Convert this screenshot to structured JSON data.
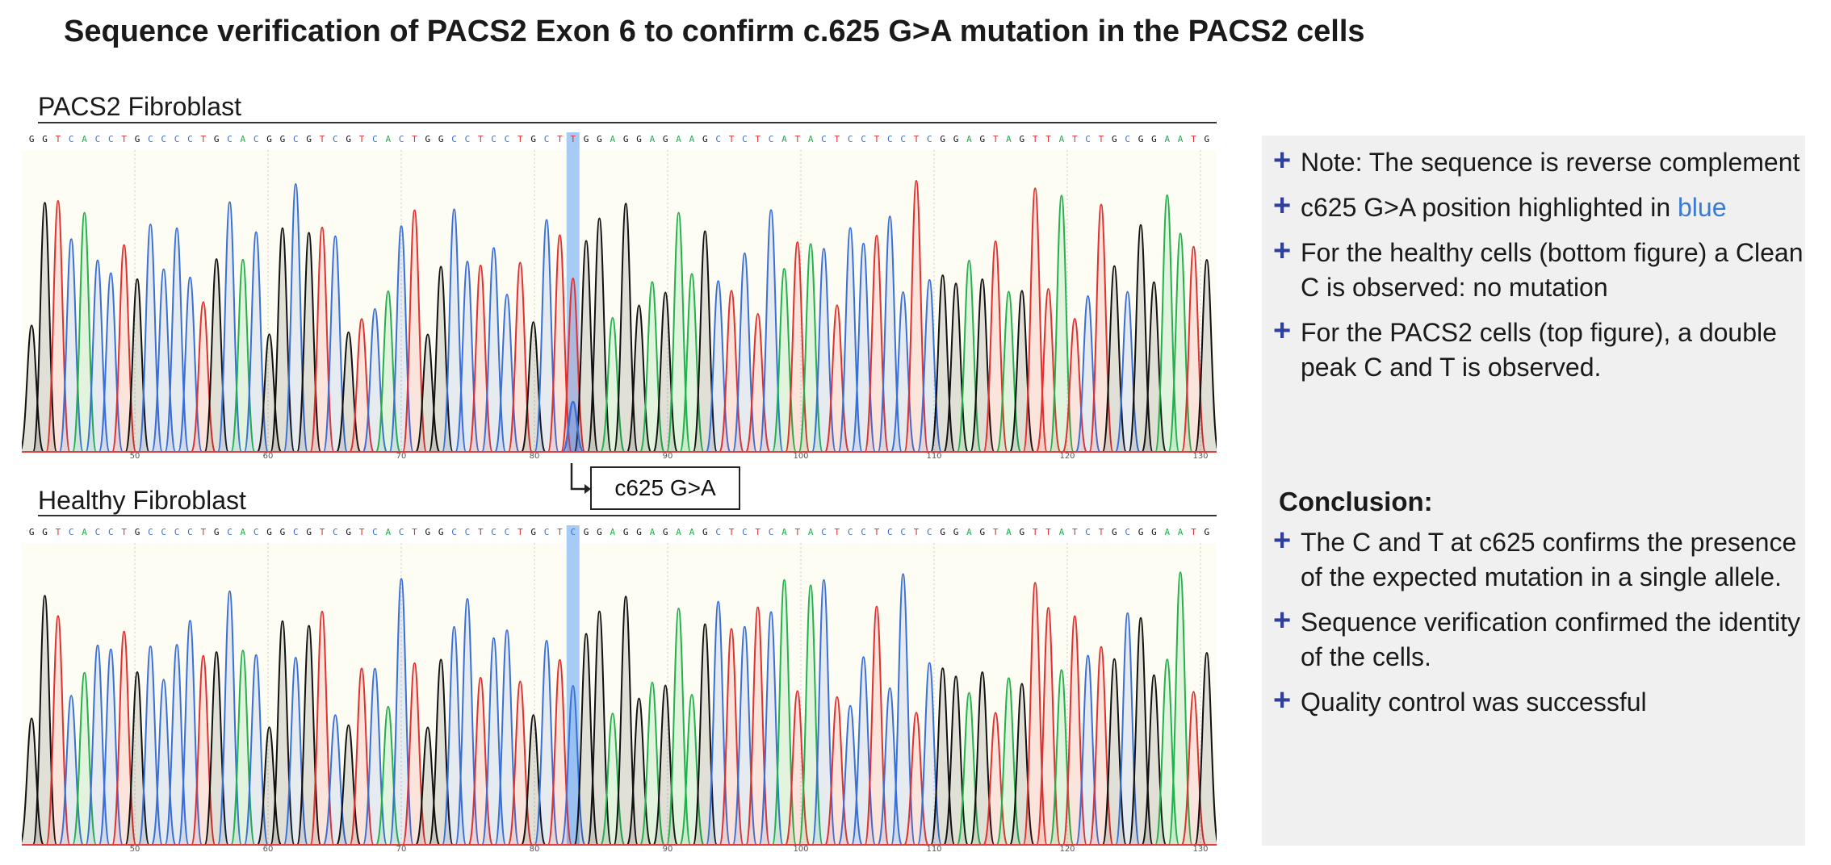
{
  "title": "Sequence verification of PACS2 Exon 6 to confirm c.625 G>A mutation in the PACS2 cells",
  "panels": [
    {
      "label": "PACS2 Fibroblast",
      "sequence": "GGTCACCTGCCCCTGCACGGCGTCGTCACTGGCCTCCTGCTTGGAGGAGAAGCTCTCATACTCCTCCTCGGAGTAGTTATCTGCGGAATG",
      "ticks": [
        "50",
        "60",
        "70",
        "80",
        "90",
        "100",
        "110",
        "120",
        "130"
      ],
      "highlight_index": 41,
      "double_peak": true
    },
    {
      "label": "Healthy Fibroblast",
      "sequence": "GGTCACCTGCCCCTGCACGGCGTCGTCACTGGCCTCCTGCTCGGAGGAGAAGCTCTCATACTCCTCCTCGGAGTAGTTATCTGCGGAATG",
      "ticks": [
        "50",
        "60",
        "70",
        "80",
        "90",
        "100",
        "110",
        "120",
        "130"
      ],
      "highlight_index": 41,
      "double_peak": false
    }
  ],
  "callout": "c625 G>A",
  "base_colors": {
    "A": "#22b14c",
    "C": "#3a6fd8",
    "G": "#111111",
    "T": "#e03030"
  },
  "highlight_color": "#9cc7f5",
  "notes": [
    {
      "text": "Note: The sequence is reverse complement"
    },
    {
      "text_before": "c625 G>A position highlighted in ",
      "text_blue": "blue"
    },
    {
      "text": "For the healthy cells (bottom figure) a Clean C is observed: no mutation"
    },
    {
      "text": "For the PACS2 cells (top figure), a double peak C and T is observed."
    }
  ],
  "conclusion_label": "Conclusion:",
  "conclusions": [
    "The C and T at c625 confirms the presence of the expected mutation in a single allele.",
    "Sequence verification confirmed the identity of the cells.",
    "Quality control was successful"
  ]
}
